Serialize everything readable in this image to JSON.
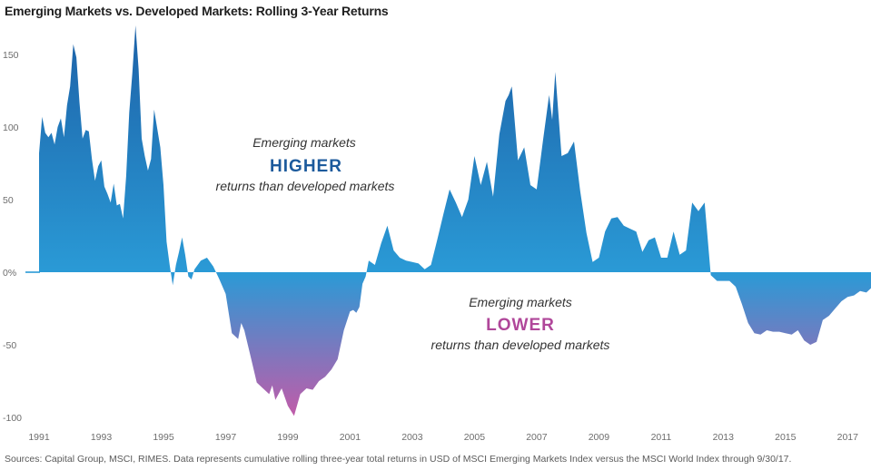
{
  "title": "Emerging Markets vs. Developed Markets: Rolling 3-Year Returns",
  "source": "Sources: Capital Group, MSCI, RIMES. Data represents cumulative rolling three-year total returns in USD of MSCI Emerging Markets Index versus the MSCI World Index through 9/30/17.",
  "annotations": {
    "higher": {
      "line1": "Emerging markets",
      "line2": "HIGHER",
      "line3": "returns than developed markets"
    },
    "lower": {
      "line1": "Emerging markets",
      "line2": "LOWER",
      "line3": "returns than developed markets"
    }
  },
  "colors": {
    "positive_top": "#1d62a8",
    "positive_bottom": "#2a9ad6",
    "negative_top": "#2a9ad6",
    "negative_bottom": "#c45aa8",
    "higher_text": "#1c5a9c",
    "lower_text": "#b0479a"
  },
  "chart_data": {
    "type": "area",
    "title": "Emerging Markets vs. Developed Markets: Rolling 3-Year Returns",
    "xlabel": "",
    "ylabel": "",
    "ylim": [
      -100,
      170
    ],
    "xlim": [
      1991,
      2017.75
    ],
    "grid": false,
    "yticks": [
      {
        "value": 150,
        "label": "150"
      },
      {
        "value": 100,
        "label": "100"
      },
      {
        "value": 50,
        "label": "50"
      },
      {
        "value": 0,
        "label": "0%"
      },
      {
        "value": -50,
        "label": "-50"
      },
      {
        "value": -100,
        "label": "-100"
      }
    ],
    "xticks": [
      "1991",
      "1993",
      "1995",
      "1997",
      "1999",
      "2001",
      "2003",
      "2005",
      "2007",
      "2009",
      "2011",
      "2013",
      "2015",
      "2017"
    ],
    "series": [
      {
        "x": [
          1991.0,
          1991.1,
          1991.2,
          1991.3,
          1991.4,
          1991.5,
          1991.6,
          1991.7,
          1991.8,
          1991.9,
          1992.0,
          1992.1,
          1992.2,
          1992.3,
          1992.4,
          1992.5,
          1992.6,
          1992.7,
          1992.8,
          1992.9,
          1993.0,
          1993.1,
          1993.2,
          1993.3,
          1993.4,
          1993.5,
          1993.6,
          1993.7,
          1993.8,
          1993.9,
          1994.0,
          1994.1,
          1994.2,
          1994.3,
          1994.4,
          1994.5,
          1994.6,
          1994.7,
          1994.8,
          1994.9,
          1995.0,
          1995.1,
          1995.2,
          1995.3,
          1995.4,
          1995.5,
          1995.6,
          1995.7,
          1995.8,
          1995.9,
          1996.0,
          1996.2,
          1996.4,
          1996.6,
          1996.8,
          1997.0,
          1997.2,
          1997.4,
          1997.5,
          1997.6,
          1997.8,
          1998.0,
          1998.2,
          1998.4,
          1998.5,
          1998.6,
          1998.8,
          1999.0,
          1999.2,
          1999.4,
          1999.6,
          1999.8,
          2000.0,
          2000.2,
          2000.4,
          2000.6,
          2000.8,
          2001.0,
          2001.1,
          2001.2,
          2001.3,
          2001.4,
          2001.5,
          2001.6,
          2001.8,
          2002.0,
          2002.2,
          2002.4,
          2002.6,
          2002.8,
          2003.0,
          2003.2,
          2003.4,
          2003.6,
          2003.8,
          2004.0,
          2004.2,
          2004.4,
          2004.6,
          2004.8,
          2005.0,
          2005.2,
          2005.4,
          2005.6,
          2005.8,
          2006.0,
          2006.1,
          2006.2,
          2006.4,
          2006.6,
          2006.8,
          2007.0,
          2007.2,
          2007.4,
          2007.5,
          2007.6,
          2007.8,
          2008.0,
          2008.2,
          2008.4,
          2008.6,
          2008.8,
          2009.0,
          2009.2,
          2009.4,
          2009.6,
          2009.8,
          2010.0,
          2010.2,
          2010.4,
          2010.6,
          2010.8,
          2011.0,
          2011.2,
          2011.4,
          2011.6,
          2011.8,
          2012.0,
          2012.2,
          2012.4,
          2012.6,
          2012.8,
          2013.0,
          2013.2,
          2013.4,
          2013.6,
          2013.8,
          2014.0,
          2014.2,
          2014.4,
          2014.6,
          2014.8,
          2015.0,
          2015.2,
          2015.4,
          2015.6,
          2015.8,
          2016.0,
          2016.2,
          2016.4,
          2016.6,
          2016.8,
          2017.0,
          2017.2,
          2017.4,
          2017.6,
          2017.75
        ],
        "y": [
          82,
          107,
          96,
          93,
          96,
          88,
          100,
          106,
          93,
          115,
          128,
          157,
          148,
          117,
          92,
          98,
          97,
          78,
          63,
          73,
          77,
          59,
          54,
          48,
          61,
          46,
          47,
          37,
          66,
          110,
          137,
          170,
          140,
          92,
          80,
          70,
          78,
          112,
          99,
          86,
          60,
          21,
          5,
          -9,
          5,
          14,
          24,
          12,
          -3,
          -5,
          2,
          8,
          10,
          4,
          -5,
          -15,
          -42,
          -46,
          -35,
          -40,
          -58,
          -76,
          -80,
          -84,
          -78,
          -88,
          -80,
          -92,
          -99,
          -84,
          -80,
          -81,
          -75,
          -72,
          -67,
          -60,
          -40,
          -27,
          -26,
          -28,
          -24,
          -8,
          -3,
          8,
          5,
          20,
          32,
          15,
          10,
          8,
          7,
          6,
          2,
          5,
          22,
          40,
          57,
          48,
          38,
          50,
          80,
          60,
          76,
          52,
          95,
          118,
          122,
          128,
          77,
          86,
          60,
          57,
          90,
          122,
          105,
          138,
          80,
          82,
          90,
          56,
          27,
          7,
          10,
          28,
          37,
          38,
          32,
          30,
          28,
          14,
          22,
          24,
          10,
          10,
          28,
          12,
          15,
          48,
          42,
          48,
          -2,
          -6,
          -6,
          -6,
          -10,
          -22,
          -35,
          -42,
          -43,
          -40,
          -41,
          -41,
          -42,
          -43,
          -40,
          -47,
          -50,
          -48,
          -33,
          -30,
          -25,
          -20,
          -17,
          -16,
          -13,
          -14,
          -11
        ]
      }
    ]
  }
}
